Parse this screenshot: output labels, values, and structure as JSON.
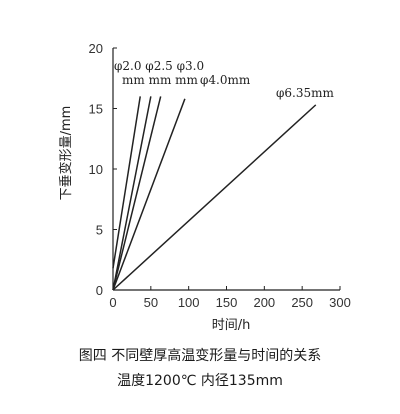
{
  "chart_data": {
    "type": "line",
    "xlabel": "时间/h",
    "ylabel": "下垂变形量/mm",
    "xlim": [
      0,
      300
    ],
    "ylim": [
      0,
      20
    ],
    "x_ticks": [
      "0",
      "50",
      "100",
      "150",
      "200",
      "250",
      "300"
    ],
    "y_ticks": [
      "0",
      "5",
      "10",
      "15",
      "20"
    ],
    "grid": false,
    "series": [
      {
        "name": "φ2.0",
        "points": [
          [
            0,
            1.8
          ],
          [
            36,
            16
          ]
        ]
      },
      {
        "name": "φ2.5",
        "points": [
          [
            0,
            0
          ],
          [
            50,
            16
          ]
        ]
      },
      {
        "name": "φ3.0",
        "points": [
          [
            0,
            0
          ],
          [
            63,
            16
          ]
        ]
      },
      {
        "name": "φ4.0",
        "points": [
          [
            0,
            0
          ],
          [
            95,
            15.8
          ]
        ]
      },
      {
        "name": "φ6.35",
        "points": [
          [
            0,
            0
          ],
          [
            268,
            15.3
          ]
        ]
      }
    ],
    "annotations": [
      {
        "text": "φ2.0 φ2.5 φ3.0",
        "near": "top-left"
      },
      {
        "text": "mm  mm  mm",
        "near": "top-left"
      },
      {
        "text": "φ4.0mm",
        "near": "top"
      },
      {
        "text": "φ6.35mm",
        "near": "top-right"
      }
    ]
  },
  "caption": {
    "line1": "图四  不同壁厚高温变形量与时间的关系",
    "line2": "温度1200℃  内径135mm"
  }
}
